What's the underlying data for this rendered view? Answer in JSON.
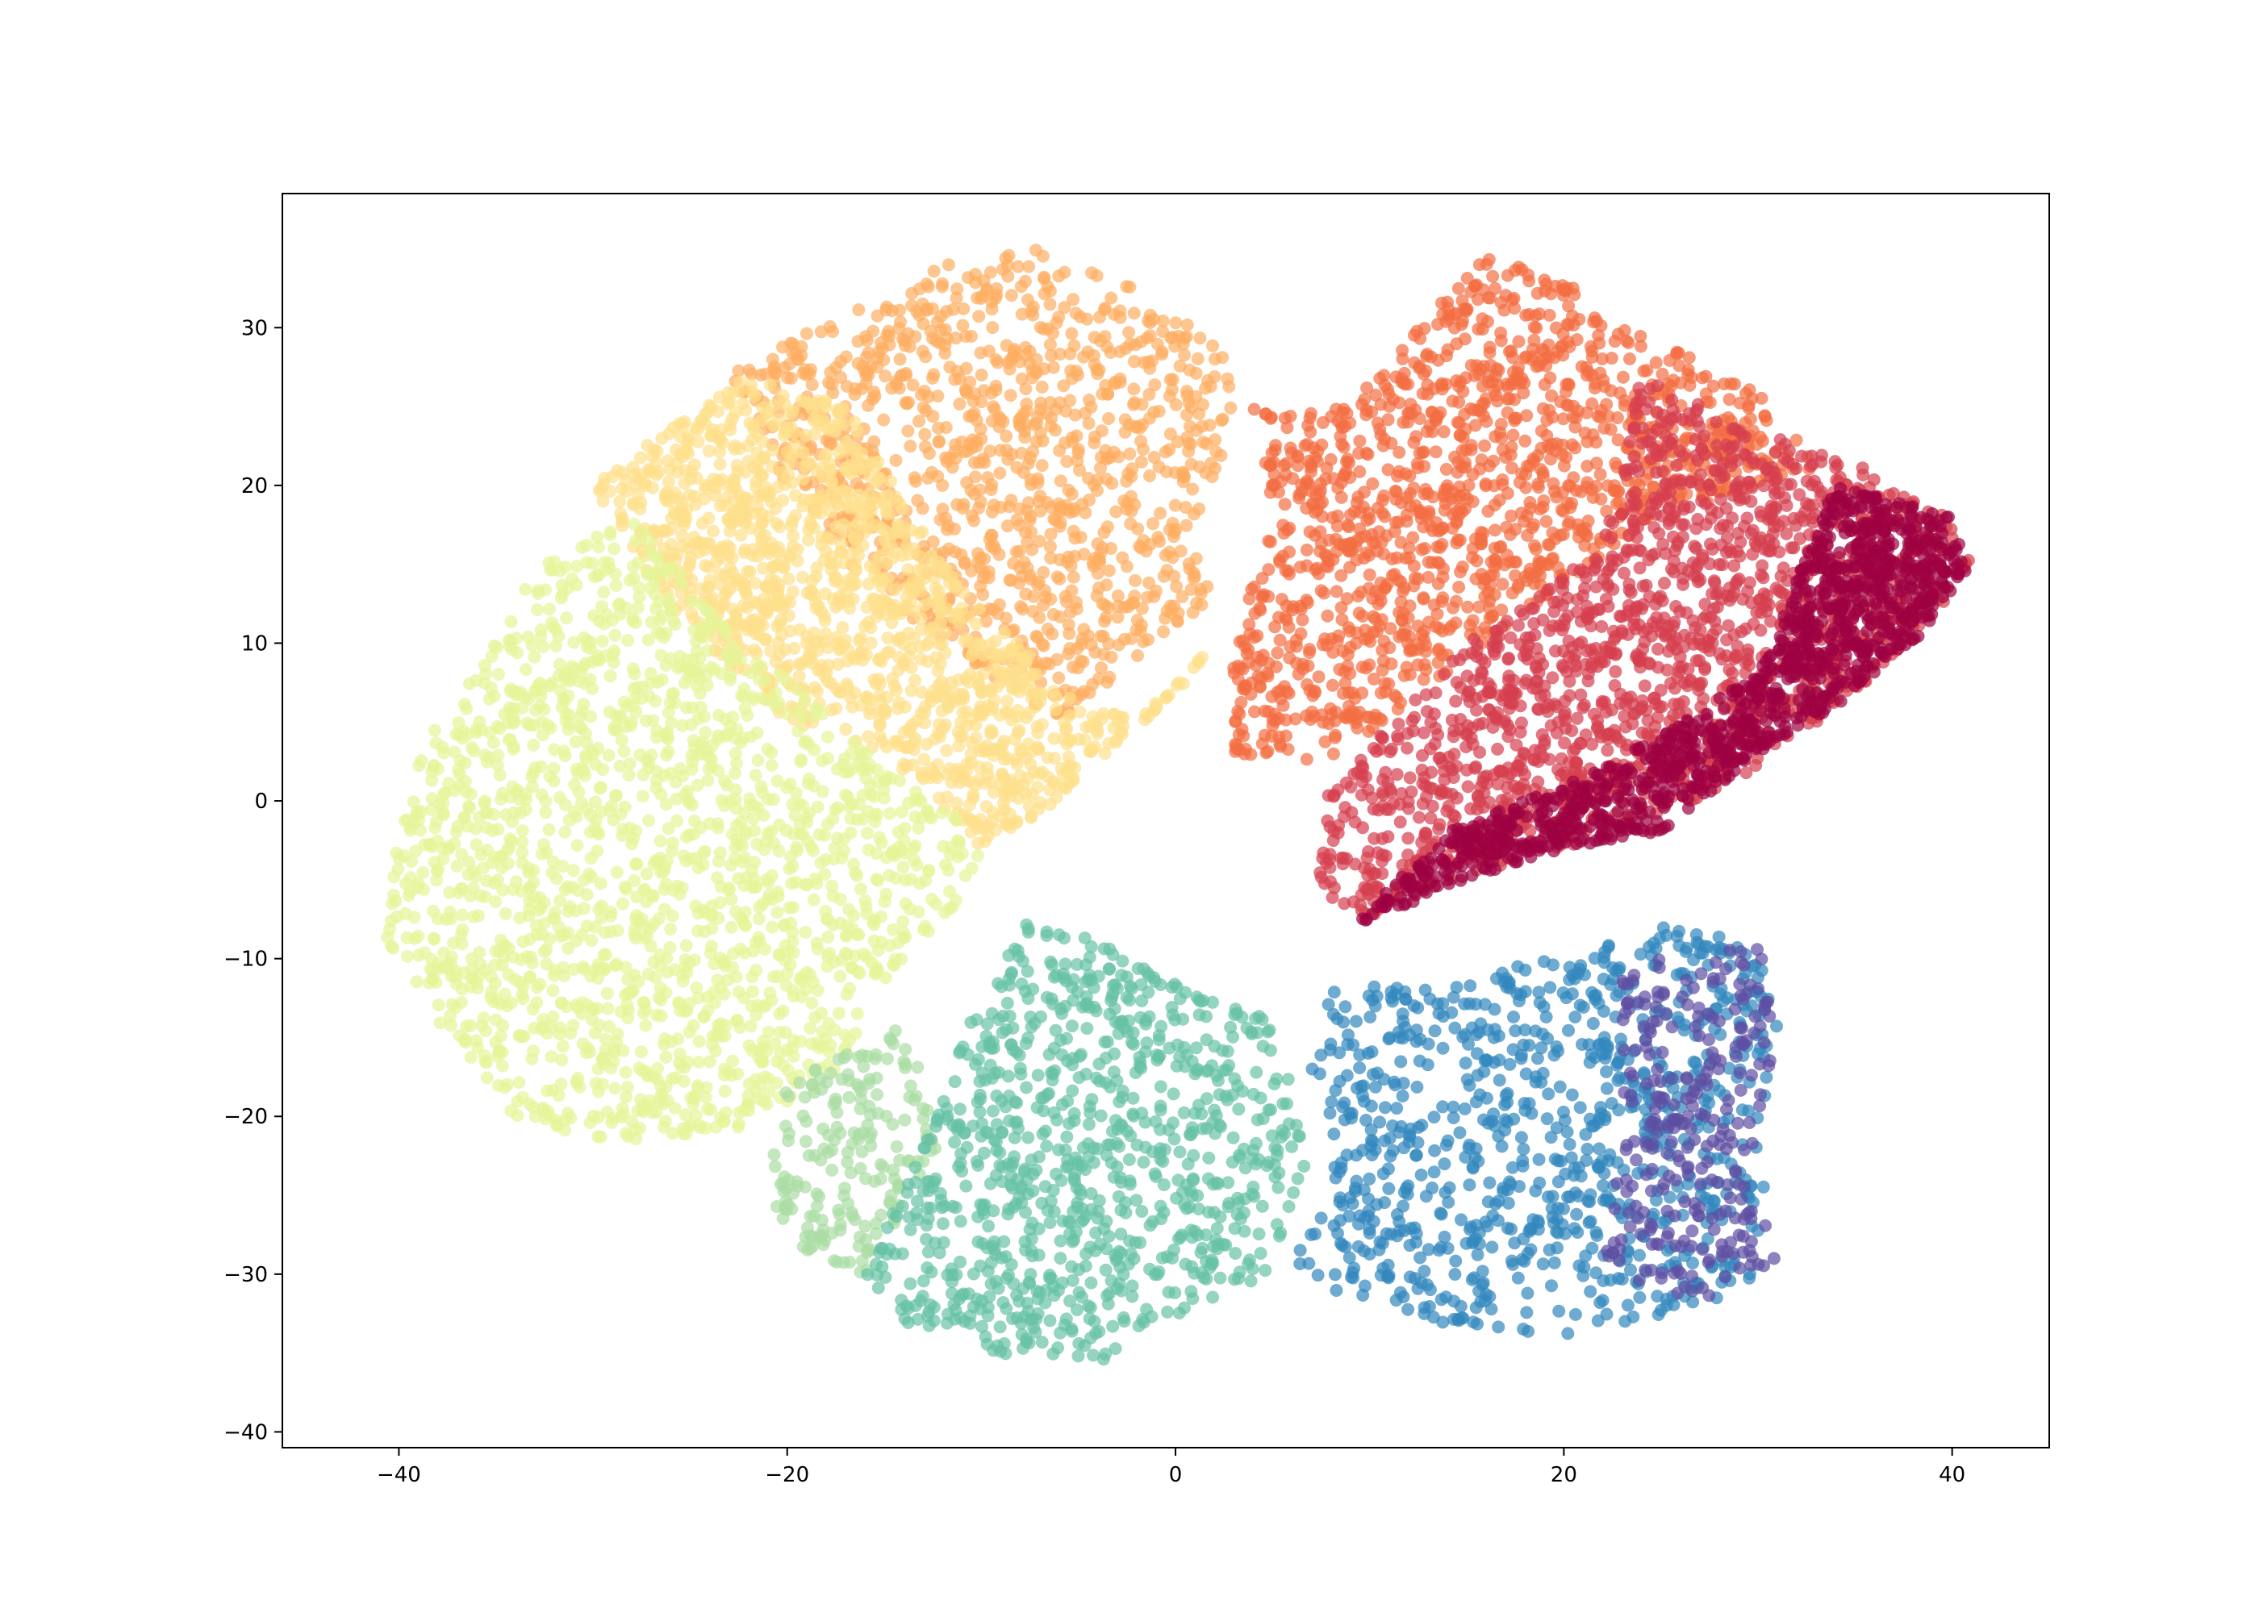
{
  "chart_data": {
    "type": "scatter",
    "title": "",
    "xlabel": "",
    "ylabel": "",
    "xlim": [
      -46,
      45
    ],
    "ylim": [
      -41,
      38.5
    ],
    "x_ticks": [
      -40,
      -20,
      0,
      20,
      40
    ],
    "y_ticks": [
      -40,
      -30,
      -20,
      -10,
      0,
      10,
      20,
      30
    ],
    "x_tick_labels": [
      "−40",
      "−20",
      "0",
      "20",
      "40"
    ],
    "y_tick_labels": [
      "−40",
      "−30",
      "−20",
      "−10",
      "0",
      "10",
      "20",
      "30"
    ],
    "grid": false,
    "legend": "none",
    "colormap": "Spectral",
    "marker_alpha": 0.7,
    "clusters": [
      {
        "color": "#fdae61",
        "polygon": [
          [
            -20,
            29
          ],
          [
            -12,
            34
          ],
          [
            -7,
            35
          ],
          [
            1,
            31
          ],
          [
            3,
            27
          ],
          [
            3,
            22
          ],
          [
            1,
            18
          ],
          [
            2,
            13
          ],
          [
            -6,
            5
          ],
          [
            -12,
            10
          ],
          [
            -17,
            15
          ],
          [
            -20,
            20
          ],
          [
            -23,
            27
          ]
        ]
      },
      {
        "color": "#fee08b",
        "polygon": [
          [
            -22,
            27
          ],
          [
            -17,
            25
          ],
          [
            -12,
            15
          ],
          [
            -5,
            6
          ],
          [
            -1,
            5
          ],
          [
            2,
            10
          ],
          [
            -6,
            0
          ],
          [
            -10,
            -3
          ],
          [
            -15,
            3
          ],
          [
            -20,
            5
          ],
          [
            -26,
            12
          ],
          [
            -30,
            20
          ],
          [
            -29,
            21
          ]
        ]
      },
      {
        "color": "#e6f598",
        "polygon": [
          [
            -33,
            15
          ],
          [
            -28,
            18
          ],
          [
            -22,
            10
          ],
          [
            -15,
            2
          ],
          [
            -10,
            -2
          ],
          [
            -10,
            -5
          ],
          [
            -14,
            -10
          ],
          [
            -18,
            -18
          ],
          [
            -23,
            -21
          ],
          [
            -30,
            -22
          ],
          [
            -34,
            -20
          ],
          [
            -38,
            -14
          ],
          [
            -41,
            -8
          ],
          [
            -39,
            3
          ],
          [
            -35,
            10
          ]
        ]
      },
      {
        "color": "#abdda4",
        "polygon": [
          [
            -20,
            -18
          ],
          [
            -14,
            -14
          ],
          [
            -12,
            -22
          ],
          [
            -16,
            -30
          ],
          [
            -20,
            -28
          ],
          [
            -21,
            -24
          ]
        ]
      },
      {
        "color": "#66c2a5",
        "polygon": [
          [
            -8,
            -7
          ],
          [
            -4,
            -9
          ],
          [
            1,
            -12
          ],
          [
            5,
            -14
          ],
          [
            6,
            -18
          ],
          [
            7,
            -25
          ],
          [
            5,
            -30
          ],
          [
            1,
            -32
          ],
          [
            -4,
            -36
          ],
          [
            -9,
            -35
          ],
          [
            -14,
            -33
          ],
          [
            -16,
            -30
          ],
          [
            -13,
            -22
          ],
          [
            -11,
            -15
          ]
        ]
      },
      {
        "color": "#3288bd",
        "polygon": [
          [
            8,
            -12
          ],
          [
            16,
            -11
          ],
          [
            25,
            -8
          ],
          [
            30,
            -9
          ],
          [
            31,
            -14
          ],
          [
            30,
            -22
          ],
          [
            31,
            -30
          ],
          [
            27,
            -32
          ],
          [
            20,
            -34
          ],
          [
            13,
            -33
          ],
          [
            8,
            -31
          ],
          [
            6,
            -29
          ],
          [
            8,
            -23
          ],
          [
            7,
            -17
          ]
        ]
      },
      {
        "color": "#5e4fa2",
        "polygon": [
          [
            23,
            -10
          ],
          [
            30,
            -9
          ],
          [
            31,
            -14
          ],
          [
            30,
            -22
          ],
          [
            31,
            -30
          ],
          [
            27,
            -32
          ],
          [
            22,
            -30
          ],
          [
            23,
            -22
          ]
        ]
      },
      {
        "color": "#f46d43",
        "polygon": [
          [
            4,
            25
          ],
          [
            9,
            25
          ],
          [
            14,
            32
          ],
          [
            16,
            35
          ],
          [
            20,
            33
          ],
          [
            23,
            30
          ],
          [
            27,
            28
          ],
          [
            31,
            25
          ],
          [
            33,
            21
          ],
          [
            25,
            18
          ],
          [
            18,
            12
          ],
          [
            12,
            6
          ],
          [
            7,
            2
          ],
          [
            3,
            3
          ],
          [
            3,
            10
          ],
          [
            5,
            18
          ]
        ]
      },
      {
        "color": "#d53e4f",
        "polygon": [
          [
            24,
            27
          ],
          [
            31,
            23
          ],
          [
            36,
            21
          ],
          [
            40,
            18
          ],
          [
            41,
            15
          ],
          [
            38,
            10
          ],
          [
            34,
            6
          ],
          [
            30,
            2
          ],
          [
            25,
            -1
          ],
          [
            20,
            -3
          ],
          [
            14,
            -5
          ],
          [
            9,
            -8
          ],
          [
            7,
            -4
          ],
          [
            8,
            1
          ],
          [
            15,
            10
          ],
          [
            22,
            16
          ]
        ]
      },
      {
        "color": "#9e0142",
        "polygon": [
          [
            34,
            20
          ],
          [
            40,
            18
          ],
          [
            41,
            15
          ],
          [
            38,
            10
          ],
          [
            34,
            6
          ],
          [
            30,
            3
          ],
          [
            25,
            -2
          ],
          [
            20,
            -3
          ],
          [
            15,
            -5
          ],
          [
            9,
            -8
          ],
          [
            14,
            -2
          ],
          [
            22,
            2
          ],
          [
            30,
            8
          ]
        ]
      }
    ]
  }
}
